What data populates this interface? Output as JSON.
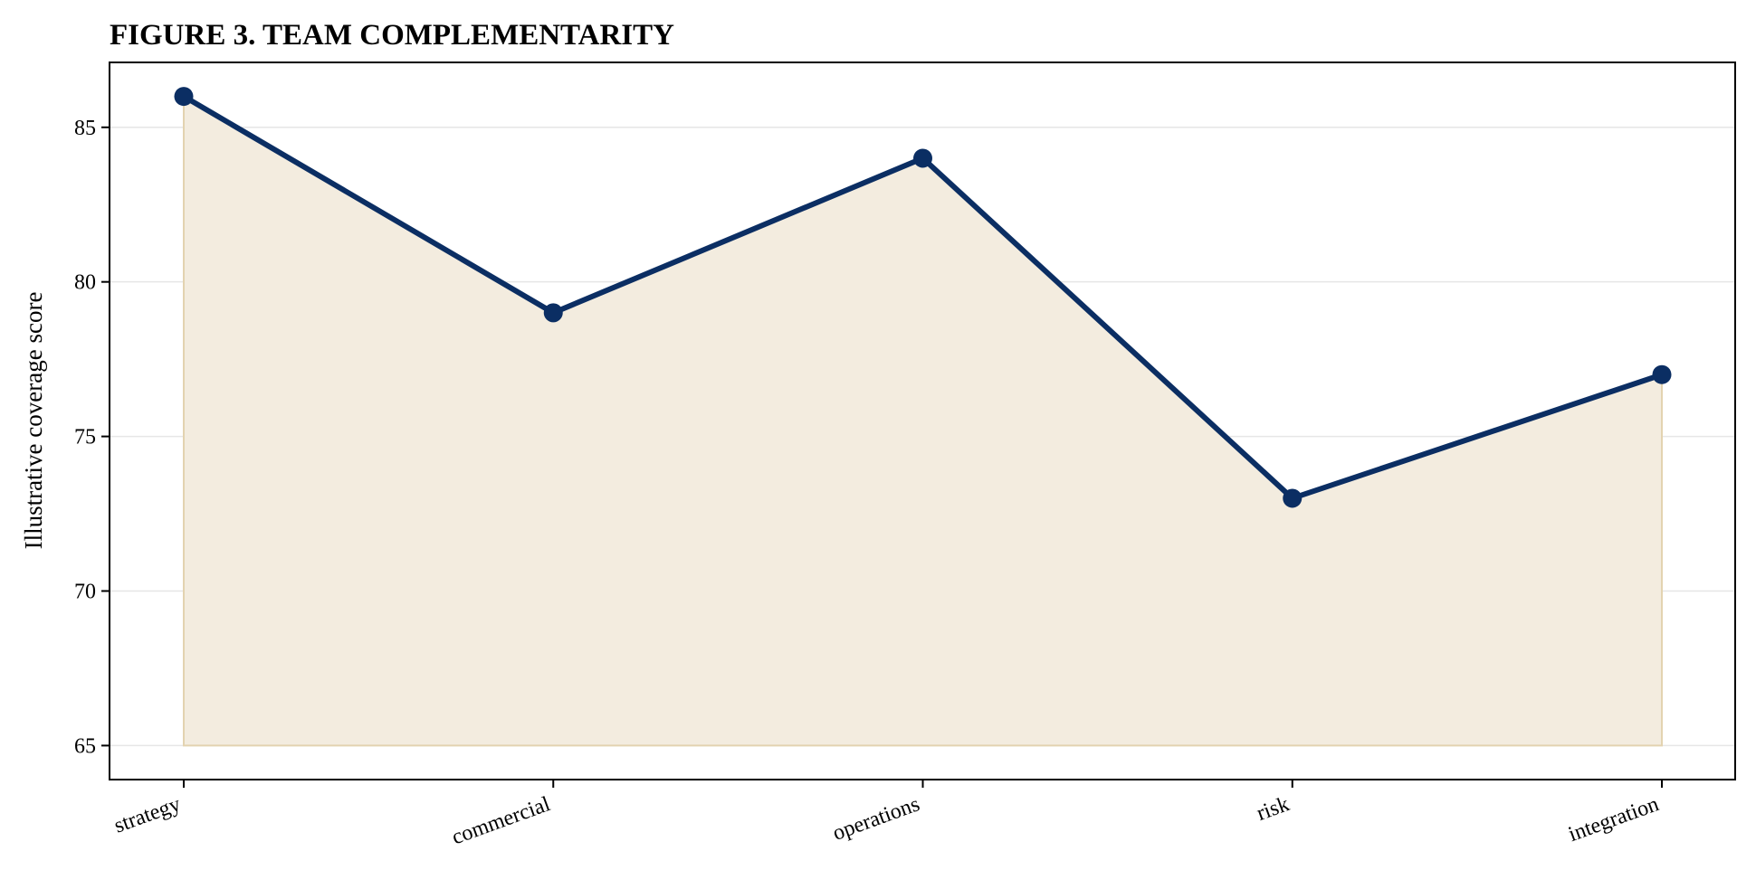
{
  "chart_data": {
    "type": "area",
    "title": "FIGURE 3. TEAM COMPLEMENTARITY",
    "xlabel": "",
    "ylabel": "Illustrative coverage score",
    "categories": [
      "strategy",
      "commercial",
      "operations",
      "risk",
      "integration"
    ],
    "series": [
      {
        "values": [
          86,
          79,
          84,
          73,
          77
        ]
      }
    ],
    "fill_baseline": 65,
    "ylim": [
      63.9,
      87.1
    ],
    "yticks": [
      65,
      70,
      75,
      80,
      85
    ],
    "grid": "horizontal",
    "colors": {
      "line": "#0b2e63",
      "fill": "#f3ecdf",
      "fill_edge": "#e3d3b0",
      "grid": "#e6e6e6",
      "axis": "#000000"
    }
  }
}
